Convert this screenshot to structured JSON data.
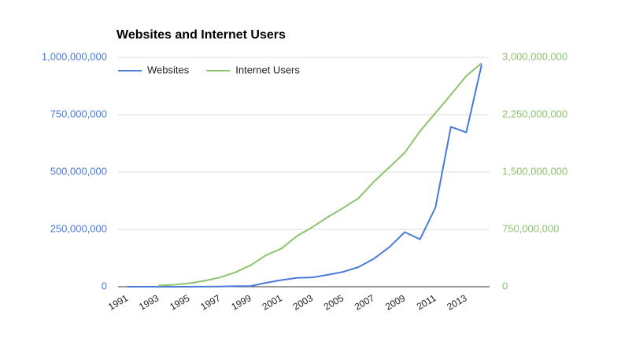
{
  "chart_data": {
    "type": "line",
    "title": "Websites and Internet Users",
    "x": [
      1991,
      1992,
      1993,
      1994,
      1995,
      1996,
      1997,
      1998,
      1999,
      2000,
      2001,
      2002,
      2003,
      2004,
      2005,
      2006,
      2007,
      2008,
      2009,
      2010,
      2011,
      2012,
      2013,
      2014
    ],
    "xlim": [
      1991,
      2014
    ],
    "xticks": [
      1991,
      1993,
      1995,
      1997,
      1999,
      2001,
      2003,
      2005,
      2007,
      2009,
      2011,
      2013
    ],
    "ylim": [
      0,
      1000000000
    ],
    "yticks": [
      0,
      {
        "value": 250000000,
        "label": "250,000,000"
      },
      {
        "value": 500000000,
        "label": "500,000,000"
      },
      {
        "value": 750000000,
        "label": "750,000,000"
      },
      {
        "value": 1000000000,
        "label": "1,000,000,000"
      }
    ],
    "y2lim": [
      0,
      3000000000
    ],
    "y2ticks": [
      0,
      {
        "value": 750000000,
        "label": "750,000,000"
      },
      {
        "value": 1500000000,
        "label": "1,500,000,000"
      },
      {
        "value": 2250000000,
        "label": "2,250,000,000"
      },
      {
        "value": 3000000000,
        "label": "3,000,000,000"
      }
    ],
    "y_color": "#4a7bd8",
    "y2_color": "#8cc46e",
    "grid": true,
    "legend": "top-left",
    "series": [
      {
        "name": "Websites",
        "color": "#4a7bd8",
        "values": [
          0,
          0,
          130,
          2738,
          23500,
          257601,
          1117255,
          2410067,
          3177453,
          17087182,
          29254370,
          38760373,
          40912332,
          51611646,
          64780617,
          85507314,
          121892559,
          172338726,
          238027855,
          206956723,
          346004403,
          697089489,
          672985183,
          968882453
        ]
      },
      {
        "name": "Internet Users",
        "color": "#8cc46e",
        "axis": "y2",
        "values": [
          null,
          null,
          14161570,
          25454590,
          44838900,
          77433860,
          120758310,
          188023930,
          280866670,
          413425190,
          500609240,
          662663600,
          778555680,
          910060180,
          1029717906,
          1157500065,
          1373040542,
          1562067594,
          1752333178,
          2034259368,
          2272463038,
          2511615523,
          2756198420,
          2925249355
        ]
      }
    ]
  }
}
